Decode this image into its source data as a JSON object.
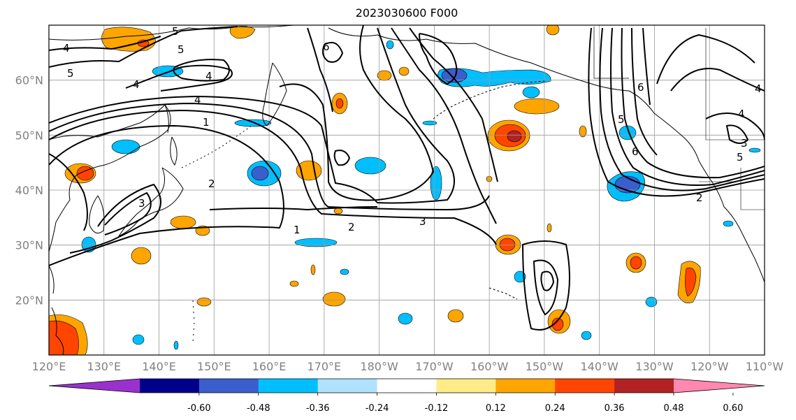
{
  "title": "2023030600 F000",
  "map": {
    "lon_range": [
      120,
      250
    ],
    "lat_range": [
      10,
      70
    ],
    "lon_labels": [
      "120°E",
      "130°E",
      "140°E",
      "150°E",
      "160°E",
      "170°E",
      "180°W",
      "170°W",
      "160°W",
      "150°W",
      "140°W",
      "130°W",
      "120°W",
      "110°W"
    ],
    "lat_labels": [
      "20°N",
      "30°N",
      "40°N",
      "50°N",
      "60°N"
    ],
    "gridlines": true
  },
  "colorbar": {
    "ticks": [
      "-0.60",
      "-0.48",
      "-0.36",
      "-0.24",
      "-0.12",
      "0.12",
      "0.24",
      "0.36",
      "0.48",
      "0.60"
    ],
    "colors": [
      "#9932cc",
      "#00008b",
      "#3a5fcd",
      "#00bfff",
      "#b0e2ff",
      "#ffffff",
      "#ffeb88",
      "#ffa500",
      "#ff4500",
      "#b22222",
      "#ff88b0"
    ],
    "extend": "both"
  },
  "contour_labels": [
    "1",
    "2",
    "3",
    "4",
    "5",
    "6"
  ]
}
